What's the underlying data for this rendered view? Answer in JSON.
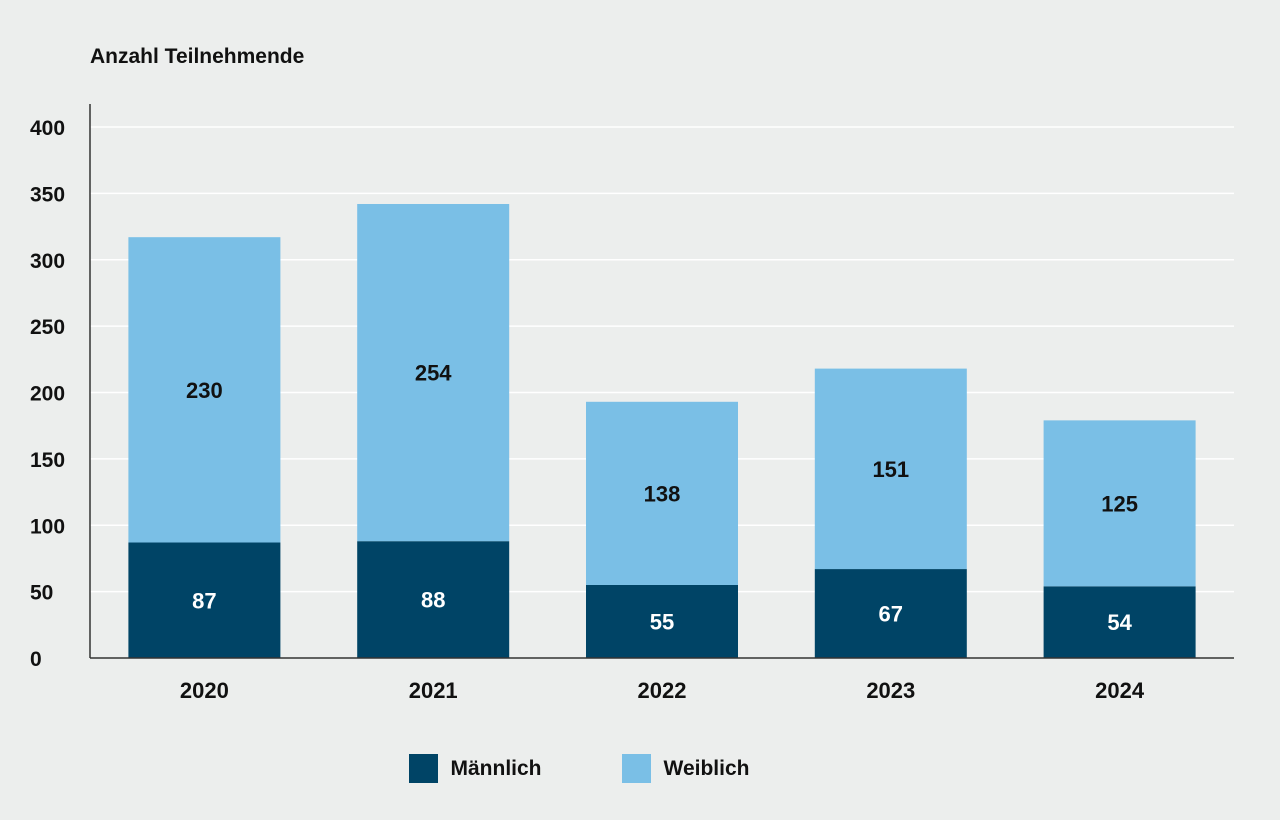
{
  "colors": {
    "background": "#eceeed",
    "maennlich": "#004466",
    "weiblich": "#7abfe6",
    "grid": "#ffffff",
    "axis": "#333333"
  },
  "chart_data": {
    "type": "bar",
    "stacked": true,
    "title": "",
    "ylabel": "Anzahl Teilnehmende",
    "xlabel": "",
    "categories": [
      "2020",
      "2021",
      "2022",
      "2023",
      "2024"
    ],
    "series": [
      {
        "name": "Männlich",
        "values": [
          87,
          88,
          55,
          67,
          54
        ],
        "color": "#004466",
        "label_color": "#ffffff"
      },
      {
        "name": "Weiblich",
        "values": [
          230,
          254,
          138,
          151,
          125
        ],
        "color": "#7abfe6",
        "label_color": "#111111"
      }
    ],
    "ylim": [
      0,
      400
    ],
    "yticks": [
      0,
      50,
      100,
      150,
      200,
      250,
      300,
      350,
      400
    ],
    "grid": true,
    "legend_position": "bottom-center"
  },
  "legend": {
    "items": [
      {
        "label": "Männlich",
        "color": "#004466"
      },
      {
        "label": "Weiblich",
        "color": "#7abfe6"
      }
    ]
  }
}
